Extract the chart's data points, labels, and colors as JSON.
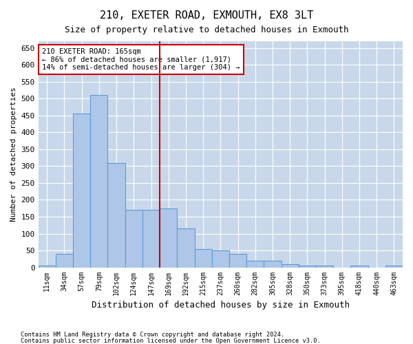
{
  "title": "210, EXETER ROAD, EXMOUTH, EX8 3LT",
  "subtitle": "Size of property relative to detached houses in Exmouth",
  "xlabel": "Distribution of detached houses by size in Exmouth",
  "ylabel": "Number of detached properties",
  "categories": [
    "11sqm",
    "34sqm",
    "57sqm",
    "79sqm",
    "102sqm",
    "124sqm",
    "147sqm",
    "169sqm",
    "192sqm",
    "215sqm",
    "237sqm",
    "260sqm",
    "282sqm",
    "305sqm",
    "328sqm",
    "350sqm",
    "373sqm",
    "395sqm",
    "418sqm",
    "440sqm",
    "463sqm"
  ],
  "values": [
    5,
    40,
    455,
    510,
    310,
    170,
    170,
    175,
    115,
    55,
    50,
    40,
    20,
    20,
    10,
    5,
    5,
    0,
    5,
    0,
    5
  ],
  "bar_color": "#aec6e8",
  "bar_edge_color": "#5b9bd5",
  "vline_x_index": 7,
  "vline_color": "#cc0000",
  "ylim": [
    0,
    670
  ],
  "yticks": [
    0,
    50,
    100,
    150,
    200,
    250,
    300,
    350,
    400,
    450,
    500,
    550,
    600,
    650
  ],
  "annotation_title": "210 EXETER ROAD: 165sqm",
  "annotation_line1": "← 86% of detached houses are smaller (1,917)",
  "annotation_line2": "14% of semi-detached houses are larger (304) →",
  "annotation_box_color": "#ffffff",
  "annotation_box_edge": "#cc0000",
  "background_color": "#ffffff",
  "grid_color": "#c8d8ea",
  "footer1": "Contains HM Land Registry data © Crown copyright and database right 2024.",
  "footer2": "Contains public sector information licensed under the Open Government Licence v3.0."
}
